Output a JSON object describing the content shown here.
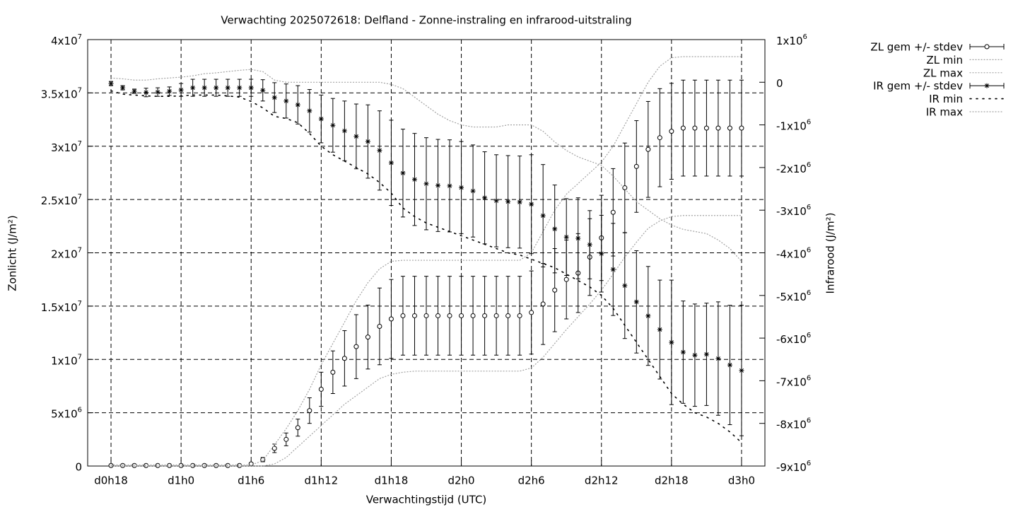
{
  "chart_data": {
    "type": "errorbar-line",
    "title": "Verwachting 2025072618: Delfland - Zonne-instraling en infrarood-uitstraling",
    "x_label": "Verwachtingstijd (UTC)",
    "y_label": "Zonlicht (J/m²)",
    "y2_label": "Infrarood (J/m²)",
    "grid": true,
    "legend": "top-right-outside",
    "xlim": [
      16,
      74
    ],
    "xticks": [
      {
        "value": 18,
        "label": "d0h18"
      },
      {
        "value": 24,
        "label": "d1h0"
      },
      {
        "value": 30,
        "label": "d1h6"
      },
      {
        "value": 36,
        "label": "d1h12"
      },
      {
        "value": 42,
        "label": "d1h18"
      },
      {
        "value": 48,
        "label": "d2h0"
      },
      {
        "value": 54,
        "label": "d2h6"
      },
      {
        "value": 60,
        "label": "d2h12"
      },
      {
        "value": 66,
        "label": "d2h18"
      },
      {
        "value": 72,
        "label": "d3h0"
      }
    ],
    "ylim": [
      0,
      40000000.0
    ],
    "yticks": [
      0,
      {
        "value": 5000000.0,
        "label": "5x10",
        "exp": "6"
      },
      {
        "value": 10000000.0,
        "label": "1x10",
        "exp": "7"
      },
      {
        "value": 15000000.0,
        "label": "1.5x10",
        "exp": "7"
      },
      {
        "value": 20000000.0,
        "label": "2x10",
        "exp": "7"
      },
      {
        "value": 25000000.0,
        "label": "2.5x10",
        "exp": "7"
      },
      {
        "value": 30000000.0,
        "label": "3x10",
        "exp": "7"
      },
      {
        "value": 35000000.0,
        "label": "3.5x10",
        "exp": "7"
      },
      {
        "value": 40000000.0,
        "label": "4x10",
        "exp": "7"
      }
    ],
    "y2lim": [
      -9000000.0,
      1000000.0
    ],
    "y2ticks": [
      {
        "value": -9000000.0,
        "label": "-9x10",
        "exp": "6"
      },
      {
        "value": -8000000.0,
        "label": "-8x10",
        "exp": "6"
      },
      {
        "value": -7000000.0,
        "label": "-7x10",
        "exp": "6"
      },
      {
        "value": -6000000.0,
        "label": "-6x10",
        "exp": "6"
      },
      {
        "value": -5000000.0,
        "label": "-5x10",
        "exp": "6"
      },
      {
        "value": -4000000.0,
        "label": "-4x10",
        "exp": "6"
      },
      {
        "value": -3000000.0,
        "label": "-3x10",
        "exp": "6"
      },
      {
        "value": -2000000.0,
        "label": "-2x10",
        "exp": "6"
      },
      {
        "value": -1000000.0,
        "label": "-1x10",
        "exp": "6"
      },
      0,
      {
        "value": 1000000.0,
        "label": "1x10",
        "exp": "6"
      }
    ],
    "x": [
      18,
      19,
      20,
      21,
      22,
      23,
      24,
      25,
      26,
      27,
      28,
      29,
      30,
      31,
      32,
      33,
      34,
      35,
      36,
      37,
      38,
      39,
      40,
      41,
      42,
      43,
      44,
      45,
      46,
      47,
      48,
      49,
      50,
      51,
      52,
      53,
      54,
      55,
      56,
      57,
      58,
      59,
      60,
      61,
      62,
      63,
      64,
      65,
      66,
      67,
      68,
      69,
      70,
      71,
      72
    ],
    "series": [
      {
        "name": "ZL gem +/- stdev",
        "style": "errorbars-circle",
        "color": "#000000",
        "axis": "y",
        "values": [
          50000.0,
          50000.0,
          50000.0,
          50000.0,
          50000.0,
          50000.0,
          50000.0,
          50000.0,
          50000.0,
          50000.0,
          50000.0,
          50000.0,
          200000.0,
          600000.0,
          1660000.0,
          2500000.0,
          3600000.0,
          5200000.0,
          7200000.0,
          8800000.0,
          10100000.0,
          11200000.0,
          12100000.0,
          13100000.0,
          13800000.0,
          14100000.0,
          14100000.0,
          14100000.0,
          14100000.0,
          14100000.0,
          14100000.0,
          14100000.0,
          14100000.0,
          14100000.0,
          14100000.0,
          14100000.0,
          14400000.0,
          15200000.0,
          16500000.0,
          17500000.0,
          18100000.0,
          19600000.0,
          21400000.0,
          23800000.0,
          26100000.0,
          28100000.0,
          29700000.0,
          30800000.0,
          31400000.0,
          31700000.0,
          31700000.0,
          31700000.0,
          31700000.0,
          31700000.0,
          31700000.0
        ],
        "errors": [
          0,
          0,
          0,
          0,
          0,
          0,
          0,
          0,
          0,
          0,
          0,
          0,
          100000.0,
          200000.0,
          400000.0,
          600000.0,
          800000.0,
          1200000.0,
          1600000.0,
          2000000.0,
          2600000.0,
          3000000.0,
          3000000.0,
          3600000.0,
          3700000.0,
          3700000.0,
          3700000.0,
          3700000.0,
          3700000.0,
          3700000.0,
          3700000.0,
          3700000.0,
          3700000.0,
          3700000.0,
          3700000.0,
          3700000.0,
          3900000.0,
          3800000.0,
          3900000.0,
          3700000.0,
          3700000.0,
          3600000.0,
          4000000.0,
          4100000.0,
          4200000.0,
          4300000.0,
          4500000.0,
          4600000.0,
          4500000.0,
          4500000.0,
          4500000.0,
          4500000.0,
          4500000.0,
          4500000.0,
          4500000.0
        ]
      },
      {
        "name": "ZL min",
        "style": "dotted",
        "color": "#a0a0a0",
        "axis": "y",
        "values": [
          0,
          0,
          0,
          0,
          0,
          0,
          0,
          0,
          0,
          0,
          0,
          0,
          0,
          0,
          200000.0,
          800000.0,
          1800000.0,
          2800000.0,
          3800000.0,
          4800000.0,
          5800000.0,
          6600000.0,
          7400000.0,
          8200000.0,
          8600000.0,
          8800000.0,
          8900000.0,
          8900000.0,
          8900000.0,
          8900000.0,
          8900000.0,
          8900000.0,
          8900000.0,
          8900000.0,
          8900000.0,
          8900000.0,
          9200000.0,
          10200000.0,
          11500000.0,
          12800000.0,
          14000000.0,
          15200000.0,
          16500000.0,
          18000000.0,
          19600000.0,
          21000000.0,
          22300000.0,
          23000000.0,
          23400000.0,
          23500000.0,
          23500000.0,
          23500000.0,
          23500000.0,
          23500000.0,
          23500000.0
        ]
      },
      {
        "name": "ZL max",
        "style": "dotted",
        "color": "#a0a0a0",
        "axis": "y",
        "values": [
          100000.0,
          100000.0,
          100000.0,
          100000.0,
          100000.0,
          100000.0,
          100000.0,
          100000.0,
          100000.0,
          100000.0,
          100000.0,
          100000.0,
          100000.0,
          500000.0,
          2000000.0,
          3500000.0,
          5200000.0,
          7200000.0,
          9500000.0,
          11500000.0,
          13500000.0,
          15500000.0,
          17200000.0,
          18500000.0,
          19200000.0,
          19300000.0,
          19300000.0,
          19300000.0,
          19300000.0,
          19300000.0,
          19300000.0,
          19300000.0,
          19300000.0,
          19300000.0,
          19300000.0,
          19300000.0,
          20000000.0,
          22000000.0,
          24000000.0,
          25500000.0,
          26500000.0,
          27500000.0,
          28500000.0,
          30000000.0,
          32000000.0,
          34000000.0,
          36000000.0,
          37500000.0,
          38300000.0,
          38400000.0,
          38400000.0,
          38400000.0,
          38400000.0,
          38400000.0,
          38400000.0
        ]
      },
      {
        "name": "IR gem +/- stdev",
        "style": "errorbars-star",
        "color": "#000000",
        "axis": "y2",
        "values": [
          -30000.0,
          -130000.0,
          -210000.0,
          -240000.0,
          -230000.0,
          -210000.0,
          -180000.0,
          -130000.0,
          -130000.0,
          -130000.0,
          -130000.0,
          -130000.0,
          -130000.0,
          -190000.0,
          -360000.0,
          -440000.0,
          -530000.0,
          -670000.0,
          -860000.0,
          -1010000.0,
          -1140000.0,
          -1270000.0,
          -1390000.0,
          -1600000.0,
          -1890000.0,
          -2130000.0,
          -2280000.0,
          -2380000.0,
          -2420000.0,
          -2430000.0,
          -2470000.0,
          -2550000.0,
          -2710000.0,
          -2780000.0,
          -2800000.0,
          -2810000.0,
          -2860000.0,
          -3130000.0,
          -3440000.0,
          -3630000.0,
          -3660000.0,
          -3810000.0,
          -4020000.0,
          -4390000.0,
          -4770000.0,
          -5150000.0,
          -5480000.0,
          -5800000.0,
          -6100000.0,
          -6330000.0,
          -6400000.0,
          -6380000.0,
          -6480000.0,
          -6630000.0,
          -6760000.0
        ],
        "errors": [
          50000.0,
          50000.0,
          50000.0,
          100000.0,
          100000.0,
          100000.0,
          150000.0,
          200000.0,
          200000.0,
          200000.0,
          200000.0,
          200000.0,
          200000.0,
          250000.0,
          350000.0,
          400000.0,
          450000.0,
          500000.0,
          560000.0,
          630000.0,
          700000.0,
          760000.0,
          860000.0,
          930000.0,
          1000000.0,
          1030000.0,
          1080000.0,
          1080000.0,
          1080000.0,
          1080000.0,
          1080000.0,
          1080000.0,
          1080000.0,
          1080000.0,
          1080000.0,
          1080000.0,
          1160000.0,
          1200000.0,
          1030000.0,
          900000.0,
          950000.0,
          800000.0,
          900000.0,
          1080000.0,
          1240000.0,
          1200000.0,
          1160000.0,
          1160000.0,
          1460000.0,
          1200000.0,
          1200000.0,
          1200000.0,
          1330000.0,
          1400000.0,
          1530000.0
        ]
      },
      {
        "name": "IR min",
        "style": "sparse-dotted",
        "color": "#000000",
        "axis": "y2",
        "values": [
          -200000.0,
          -280000.0,
          -300000.0,
          -320000.0,
          -330000.0,
          -330000.0,
          -320000.0,
          -300000.0,
          -300000.0,
          -300000.0,
          -320000.0,
          -350000.0,
          -450000.0,
          -600000.0,
          -800000.0,
          -850000.0,
          -950000.0,
          -1200000.0,
          -1500000.0,
          -1700000.0,
          -1850000.0,
          -2000000.0,
          -2150000.0,
          -2350000.0,
          -2600000.0,
          -2950000.0,
          -3150000.0,
          -3300000.0,
          -3400000.0,
          -3500000.0,
          -3600000.0,
          -3700000.0,
          -3800000.0,
          -3900000.0,
          -4000000.0,
          -4050000.0,
          -4150000.0,
          -4250000.0,
          -4350000.0,
          -4500000.0,
          -4650000.0,
          -4800000.0,
          -5000000.0,
          -5300000.0,
          -5700000.0,
          -6100000.0,
          -6500000.0,
          -6900000.0,
          -7300000.0,
          -7550000.0,
          -7750000.0,
          -7850000.0,
          -8000000.0,
          -8200000.0,
          -8450000.0
        ]
      },
      {
        "name": "IR max",
        "style": "dotted",
        "color": "#a0a0a0",
        "axis": "y2",
        "values": [
          100000.0,
          80000.0,
          50000.0,
          50000.0,
          80000.0,
          100000.0,
          120000.0,
          150000.0,
          200000.0,
          220000.0,
          250000.0,
          280000.0,
          300000.0,
          250000.0,
          50000.0,
          0,
          0,
          0,
          0,
          0,
          0,
          0,
          0,
          0,
          -50000.0,
          -150000.0,
          -350000.0,
          -550000.0,
          -750000.0,
          -900000.0,
          -1000000.0,
          -1050000.0,
          -1050000.0,
          -1050000.0,
          -1000000.0,
          -1000000.0,
          -1000000.0,
          -1150000.0,
          -1400000.0,
          -1600000.0,
          -1750000.0,
          -1850000.0,
          -1950000.0,
          -2200000.0,
          -2500000.0,
          -2800000.0,
          -3000000.0,
          -3200000.0,
          -3350000.0,
          -3450000.0,
          -3500000.0,
          -3550000.0,
          -3700000.0,
          -3900000.0,
          -4200000.0
        ]
      }
    ]
  }
}
